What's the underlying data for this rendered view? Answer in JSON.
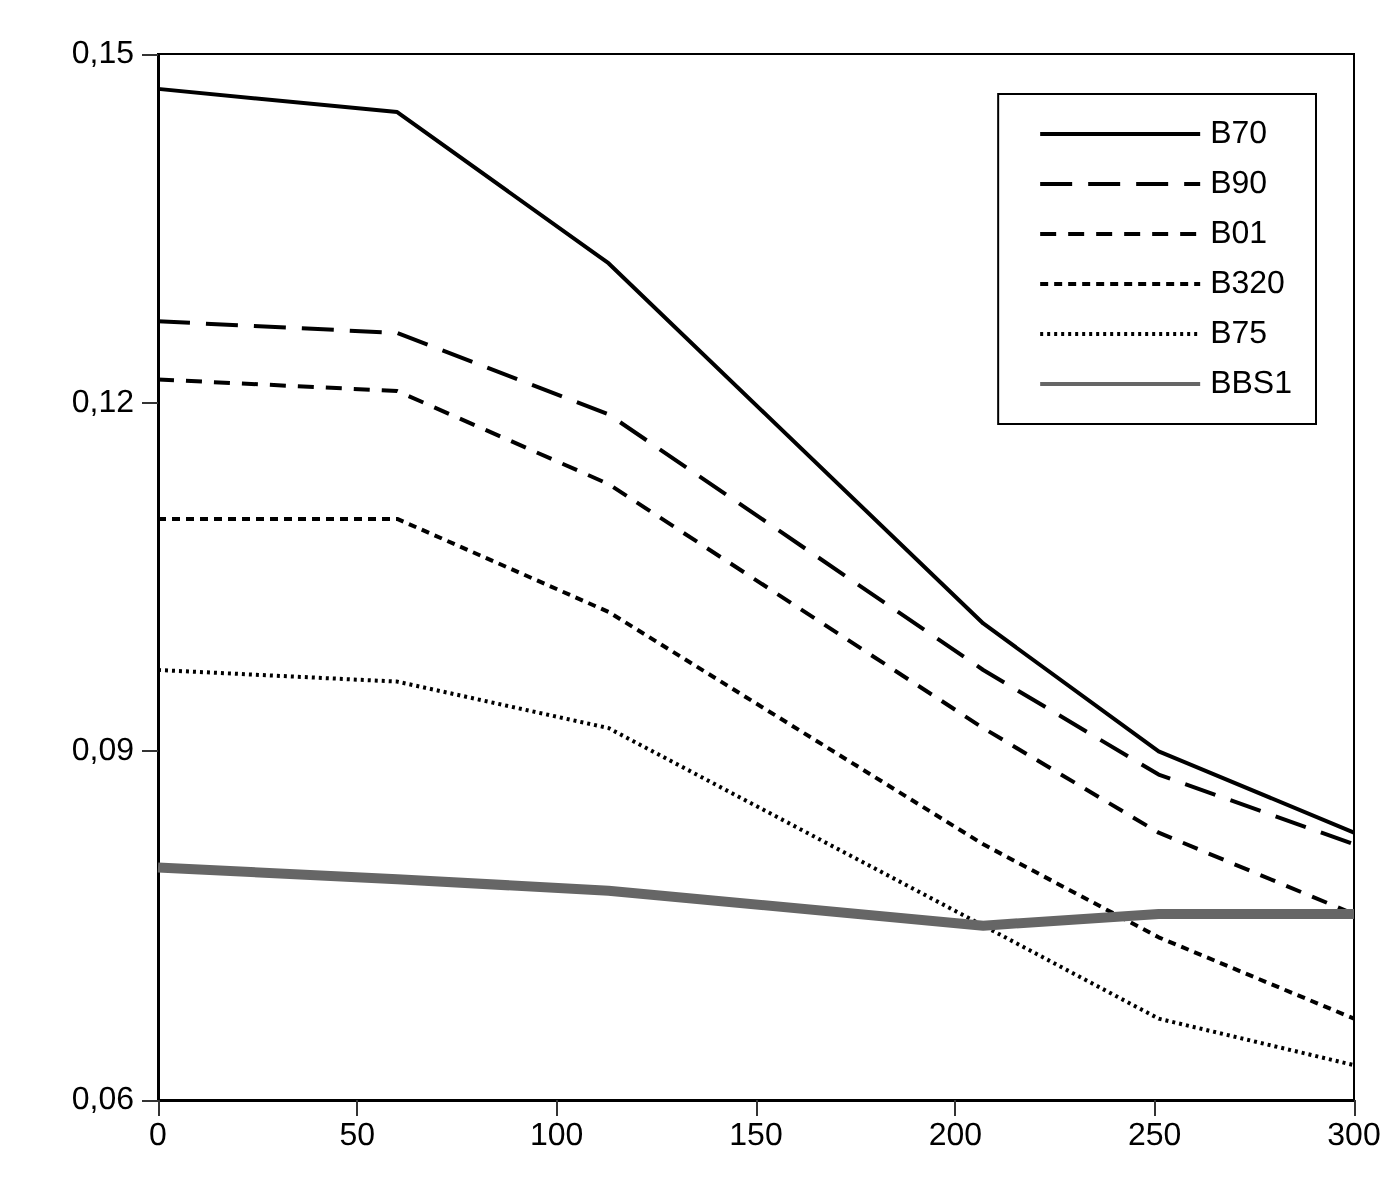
{
  "chart_data": {
    "type": "line",
    "x": [
      0,
      60,
      113,
      207,
      251,
      300
    ],
    "series": [
      {
        "name": "B70",
        "color": "#000000",
        "line_style": "solid",
        "values": [
          0.147,
          0.145,
          0.132,
          0.101,
          0.09,
          0.083
        ]
      },
      {
        "name": "B90",
        "color": "#000000",
        "line_style": "dashed",
        "values": [
          0.127,
          0.126,
          0.119,
          0.097,
          0.088,
          0.082
        ]
      },
      {
        "name": "B01",
        "color": "#000000",
        "line_style": "dashed",
        "values": [
          0.122,
          0.121,
          0.113,
          0.092,
          0.083,
          0.076
        ]
      },
      {
        "name": "B320",
        "color": "#000000",
        "line_style": "dashed",
        "values": [
          0.11,
          0.11,
          0.102,
          0.082,
          0.074,
          0.067
        ]
      },
      {
        "name": "B75",
        "color": "#000000",
        "line_style": "dotted",
        "values": [
          0.097,
          0.096,
          0.092,
          0.075,
          0.067,
          0.063
        ]
      },
      {
        "name": "BBS1",
        "color": "#666666",
        "line_style": "solid",
        "values": [
          0.08,
          0.079,
          0.078,
          0.075,
          0.076,
          0.076
        ]
      }
    ],
    "xlim": [
      0,
      300
    ],
    "xticks": [
      0,
      50,
      100,
      150,
      200,
      250,
      300
    ],
    "ylim": [
      0.06,
      0.15
    ],
    "yticks": [
      {
        "value": 0.06,
        "label": "0,06"
      },
      {
        "value": 0.09,
        "label": "0,09"
      },
      {
        "value": 0.12,
        "label": "0,12"
      },
      {
        "value": 0.15,
        "label": "0,15"
      }
    ],
    "grid": false,
    "legend": "top right",
    "marker": "none"
  }
}
